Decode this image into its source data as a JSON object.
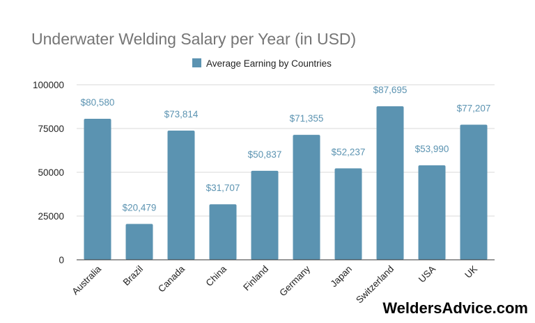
{
  "chart_data": {
    "type": "bar",
    "title": "Underwater Welding Salary per Year (in USD)",
    "categories": [
      "Australia",
      "Brazil",
      "Canada",
      "China",
      "Finland",
      "Germany",
      "Japan",
      "Switzerland",
      "USA",
      "UK"
    ],
    "series": [
      {
        "name": "Average Earning by Countries",
        "values": [
          80580,
          20479,
          73814,
          31707,
          50837,
          71355,
          52237,
          87695,
          53990,
          77207
        ],
        "data_labels": [
          "$80,580",
          "$20,479",
          "$73,814",
          "$31,707",
          "$50,837",
          "$71,355",
          "$52,237",
          "$87,695",
          "$53,990",
          "$77,207"
        ]
      }
    ],
    "y_ticks": [
      "0",
      "25000",
      "50000",
      "75000",
      "100000"
    ],
    "y_tick_values": [
      0,
      25000,
      50000,
      75000,
      100000
    ],
    "ylim": [
      0,
      100000
    ],
    "xlabel": "",
    "ylabel": "",
    "grid": true,
    "legend_position": "top-center"
  },
  "colors": {
    "bar": "#5b93b1",
    "data_label": "#5b93b1",
    "title": "#757575",
    "grid": "#d9d9d9"
  },
  "watermark": "WeldersAdvice.com"
}
